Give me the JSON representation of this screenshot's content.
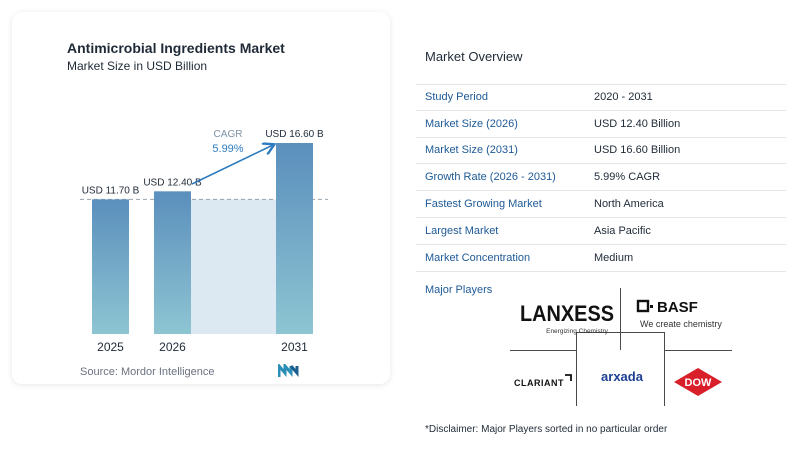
{
  "chart": {
    "title": "Antimicrobial Ingredients Market",
    "subtitle": "Market Size in USD Billion",
    "source": "Source: Mordor Intelligence",
    "cagr_label": "CAGR",
    "cagr_value": "5.99%",
    "colors": {
      "bar_top": "#5b8fbd",
      "bar_bottom": "#8ec5d2",
      "shade": "#dde9f2",
      "accent": "#2f7bbf",
      "dash": "#9aa4ad"
    }
  },
  "chart_data": {
    "type": "bar",
    "title": "Antimicrobial Ingredients Market",
    "subtitle": "Market Size in USD Billion",
    "categories": [
      "2025",
      "2026",
      "2031"
    ],
    "values": [
      11.7,
      12.4,
      16.6
    ],
    "data_labels": [
      "USD 11.70 B",
      "USD 12.40 B",
      "USD 16.60 B"
    ],
    "annotation": {
      "label": "CAGR",
      "value": "5.99%"
    },
    "xlabel": "",
    "ylabel": "",
    "grid": false
  },
  "overview": {
    "title": "Market Overview",
    "rows": [
      {
        "label": "Study Period",
        "value": "2020 - 2031"
      },
      {
        "label": "Market Size (2026)",
        "value": "USD 12.40 Billion"
      },
      {
        "label": "Market Size (2031)",
        "value": "USD 16.60 Billion"
      },
      {
        "label": "Growth Rate (2026 - 2031)",
        "value": "5.99% CAGR"
      },
      {
        "label": "Fastest Growing Market",
        "value": "North America"
      },
      {
        "label": "Largest Market",
        "value": "Asia Pacific"
      },
      {
        "label": "Market Concentration",
        "value": "Medium"
      }
    ]
  },
  "players": {
    "label": "Major Players",
    "logos": {
      "lanxess": {
        "name": "LANXESS",
        "tagline": "Energizing Chemistry"
      },
      "basf": {
        "name": "BASF",
        "tagline": "We create chemistry"
      },
      "clariant": {
        "name": "CLARIANT"
      },
      "arxada": {
        "name": "arxada"
      },
      "dow": {
        "name": "DOW"
      }
    }
  },
  "disclaimer": "*Disclaimer: Major Players sorted in no particular order"
}
